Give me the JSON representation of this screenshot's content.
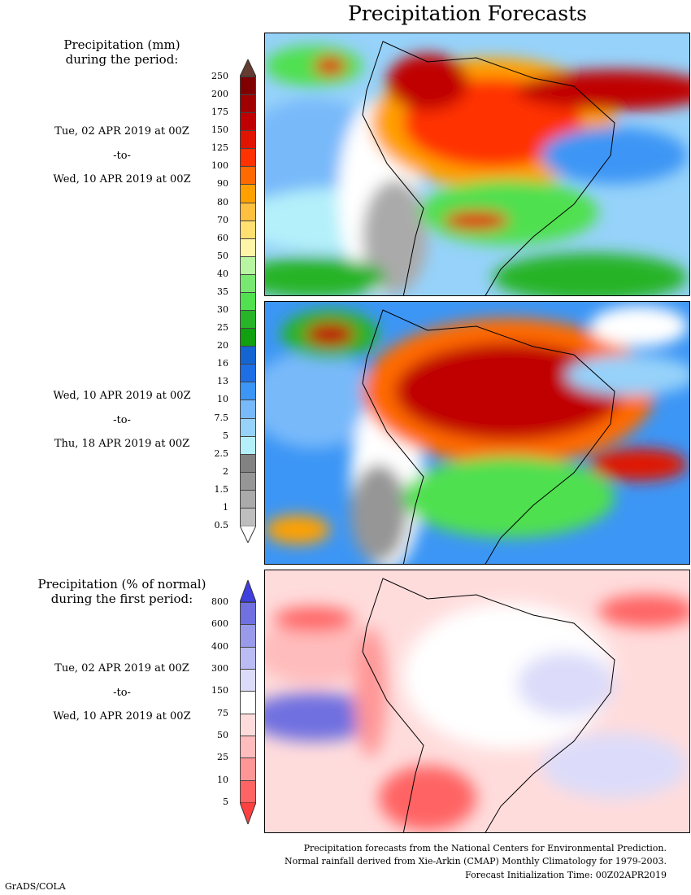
{
  "title": "Precipitation Forecasts",
  "panel1": {
    "heading_line1": "Precipitation (mm)",
    "heading_line2": "during the period:",
    "start": "Tue, 02 APR 2019 at 00Z",
    "sep": "-to-",
    "end": "Wed, 10 APR 2019 at 00Z"
  },
  "panel2": {
    "start": "Wed, 10 APR 2019 at 00Z",
    "sep": "-to-",
    "end": "Thu, 18 APR 2019 at 00Z"
  },
  "panel3": {
    "heading_line1": "Precipitation (% of normal)",
    "heading_line2": "during the first period:",
    "start": "Tue, 02 APR 2019 at 00Z",
    "sep": "-to-",
    "end": "Wed, 10 APR 2019 at 00Z"
  },
  "chart_data": [
    {
      "type": "heatmap",
      "title": "Precipitation (mm)",
      "levels": [
        "250",
        "200",
        "175",
        "150",
        "125",
        "100",
        "90",
        "80",
        "70",
        "60",
        "50",
        "40",
        "35",
        "30",
        "25",
        "20",
        "16",
        "13",
        "10",
        "7.5",
        "5",
        "2.5",
        "2",
        "1.5",
        "1",
        "0.5"
      ],
      "colors": [
        "#800000",
        "#a00000",
        "#c00000",
        "#e01400",
        "#ff3200",
        "#ff6a00",
        "#ffa000",
        "#ffc040",
        "#ffe070",
        "#fff5a8",
        "#b8f5a0",
        "#78e870",
        "#50e050",
        "#28b428",
        "#10a010",
        "#1464d2",
        "#1e6ee6",
        "#3c96f5",
        "#78b9fa",
        "#96d2fa",
        "#b4f0fa",
        "#828282",
        "#969696",
        "#aaaaaa",
        "#bebebe"
      ],
      "over_color": "#643c32",
      "under_color": "#ffffff"
    },
    {
      "type": "heatmap",
      "title": "Precipitation (% of normal)",
      "levels": [
        "800",
        "600",
        "400",
        "300",
        "150",
        "75",
        "50",
        "25",
        "10",
        "5"
      ],
      "colors": [
        "#7070e0",
        "#9a9aea",
        "#bcbcf4",
        "#dcdcfa",
        "#ffffff",
        "#ffdcdc",
        "#ffbcbc",
        "#ff9696",
        "#ff6464"
      ],
      "over_color": "#4040e0",
      "under_color": "#ff4040"
    }
  ],
  "footer": {
    "line1": "Precipitation forecasts from the National Centers for Environmental Prediction.",
    "line2": "Normal rainfall derived from Xie-Arkin (CMAP) Monthly Climatology for 1979-2003.",
    "line3": "Forecast Initialization Time: 00Z02APR2019",
    "credit": "GrADS/COLA"
  }
}
